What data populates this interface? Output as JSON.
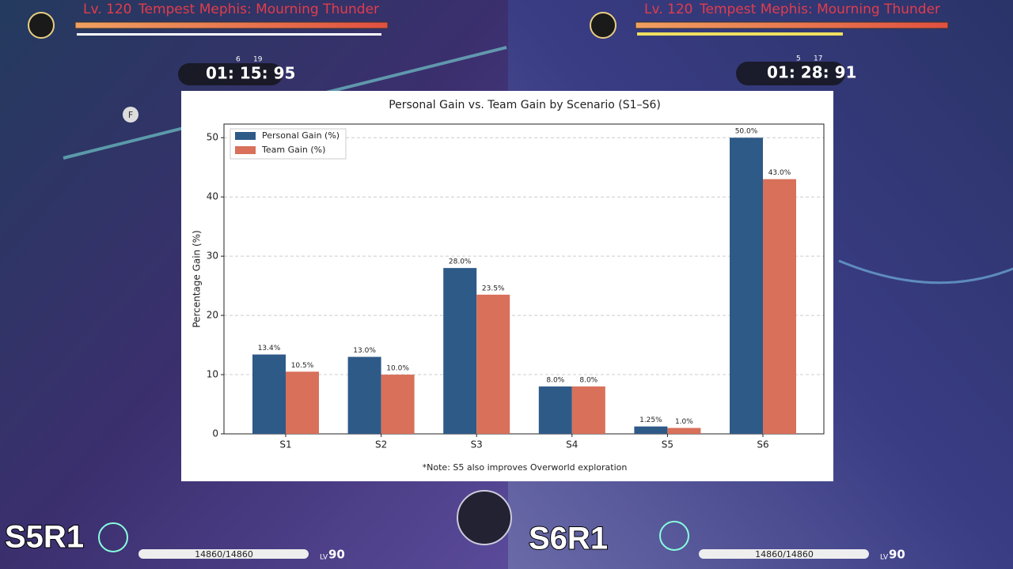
{
  "hud": {
    "left": {
      "level": "Lv. 120",
      "boss": "Tempest Mephis: Mourning Thunder",
      "buffs": [
        "6",
        "19"
      ],
      "timer": "01: 15: 95",
      "key": "F",
      "build": "S5R1",
      "hp": "14860/14860",
      "lv_prefix": "LV",
      "lv": "90"
    },
    "right": {
      "level": "Lv. 120",
      "boss": "Tempest Mephis: Mourning Thunder",
      "buffs": [
        "5",
        "17"
      ],
      "timer": "01: 28: 91",
      "build": "S6R1",
      "hp": "14860/14860",
      "lv_prefix": "LV",
      "lv": "90"
    }
  },
  "chart_data": {
    "type": "bar",
    "title": "Personal Gain vs. Team Gain by Scenario (S1–S6)",
    "y_label": "Percentage Gain (%)",
    "note": "*Note: S5 also improves Overworld exploration",
    "categories": [
      "S1",
      "S2",
      "S3",
      "S4",
      "S5",
      "S6"
    ],
    "series": [
      {
        "name": "Personal Gain (%)",
        "color": "#2e5a88",
        "values": [
          13.4,
          13.0,
          28.0,
          8.0,
          1.25,
          50.0
        ],
        "value_labels": [
          "13.4%",
          "13.0%",
          "28.0%",
          "8.0%",
          "1.25%",
          "50.0%"
        ]
      },
      {
        "name": "Team Gain (%)",
        "color": "#d8705a",
        "values": [
          10.5,
          10.0,
          23.5,
          8.0,
          1.0,
          43.0
        ],
        "value_labels": [
          "10.5%",
          "10.0%",
          "23.5%",
          "8.0%",
          "1.0%",
          "43.0%"
        ]
      }
    ],
    "ylim": [
      0,
      52.3
    ],
    "yticks": [
      0,
      10,
      20,
      30,
      40,
      50
    ],
    "grid": true,
    "legend": "upper-left"
  }
}
